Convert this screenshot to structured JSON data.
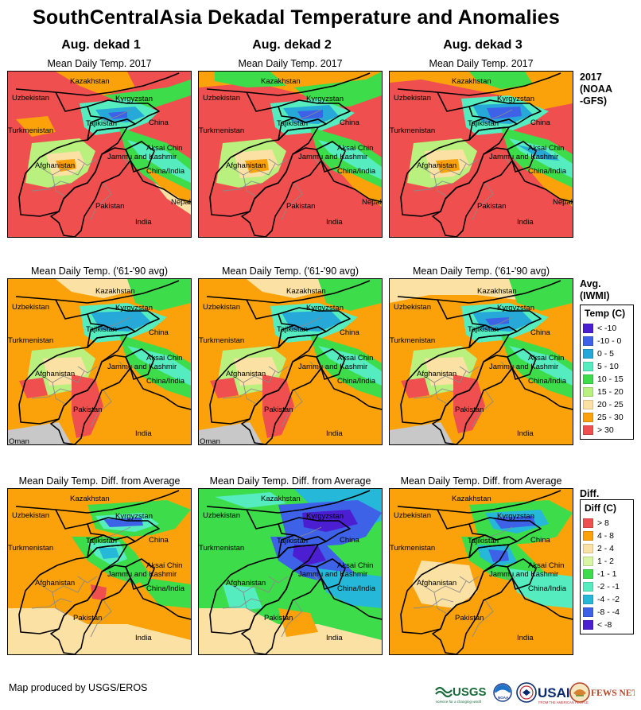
{
  "title": "SouthCentralAsia Dekadal Temperature and Anomalies",
  "columns": [
    "Aug. dekad 1",
    "Aug. dekad 2",
    "Aug. dekad 3"
  ],
  "rows": [
    {
      "id": "current",
      "label": "2017 (NOAA -GFS)",
      "label_lines": [
        "2017",
        "(NOAA",
        "-GFS)"
      ],
      "map_titles": [
        "Mean Daily Temp. 2017",
        "Mean Daily Temp. 2017",
        "Mean Daily Temp. 2017"
      ]
    },
    {
      "id": "average",
      "label": "Avg. (IWMI)",
      "label_lines": [
        "Avg.",
        "(IWMI)"
      ],
      "map_titles": [
        "Mean Daily Temp. ('61-'90 avg)",
        "Mean Daily Temp. ('61-'90 avg)",
        "Mean Daily Temp. ('61-'90 avg)"
      ]
    },
    {
      "id": "diff",
      "label": "Diff.",
      "label_lines": [
        "Diff."
      ],
      "map_titles": [
        "Mean Daily Temp. Diff. from Average",
        "Mean Daily Temp. Diff. from Average",
        "Mean Daily Temp. Diff. from Average"
      ]
    }
  ],
  "place_labels": {
    "kazakhstan": "Kazakhstan",
    "uzbekistan": "Uzbekistan",
    "kyrgyzstan": "Kyrgyzstan",
    "tajikistan": "Tajikistan",
    "turkmenistan": "Turkmenistan",
    "china": "China",
    "aksai_chin": "Aksai Chin",
    "jammu_kashmir": "Jammu and Kashmir",
    "china_india": "China/India",
    "afghanistan": "Afghanistan",
    "pakistan": "Pakistan",
    "nepal": "Nepal",
    "india": "India",
    "oman": "Oman"
  },
  "temp_legend": {
    "title": "Temp (C)",
    "items": [
      {
        "label": "< -10",
        "color": "#4b1ed2"
      },
      {
        "label": "-10 - 0",
        "color": "#3d62e8"
      },
      {
        "label": "0 - 5",
        "color": "#26a8d8"
      },
      {
        "label": "5 - 10",
        "color": "#55ecc0"
      },
      {
        "label": "10 - 15",
        "color": "#3ddc4a"
      },
      {
        "label": "15 - 20",
        "color": "#b9f07e"
      },
      {
        "label": "20 - 25",
        "color": "#fbe1a4"
      },
      {
        "label": "25 - 30",
        "color": "#fba20a"
      },
      {
        "label": "> 30",
        "color": "#ef4f4f"
      }
    ]
  },
  "diff_legend": {
    "title": "Diff (C)",
    "items": [
      {
        "label": "> 8",
        "color": "#ef4f4f"
      },
      {
        "label": "4 - 8",
        "color": "#fba20a"
      },
      {
        "label": "2 - 4",
        "color": "#fbe1a4"
      },
      {
        "label": "1 - 2",
        "color": "#d8f5a3"
      },
      {
        "label": "-1 - 1",
        "color": "#3ddc4a"
      },
      {
        "label": "-2 - -1",
        "color": "#55ecc0"
      },
      {
        "label": "-4 - -2",
        "color": "#26b8d8"
      },
      {
        "label": "-8 - -4",
        "color": "#3d62e8"
      },
      {
        "label": "< -8",
        "color": "#4b1ed2"
      }
    ]
  },
  "footer": "Map produced by USGS/EROS",
  "logos": {
    "usgs": "USGS",
    "usgs_tagline": "science for a changing world",
    "noaa": "NOAA",
    "usaid": "USAID",
    "usaid_tagline": "FROM THE AMERICAN PEOPLE",
    "fewsnet": "FEWS NET"
  },
  "colors": {
    "hot": "#ef4f4f",
    "warm": "#fba20a",
    "mild": "#fbe1a4",
    "green": "#3ddc4a",
    "aqua": "#55ecc0",
    "cyan": "#26a8d8",
    "blue": "#3d62e8",
    "ocean": "#c8c8c8"
  }
}
